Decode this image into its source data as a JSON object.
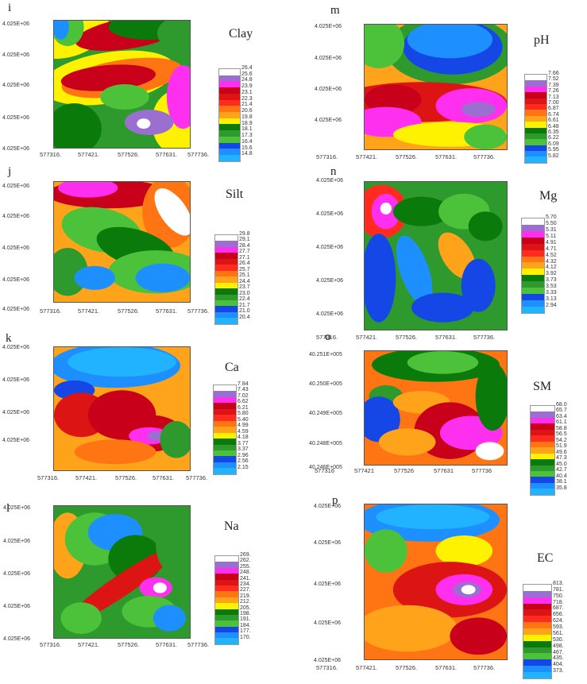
{
  "panels": [
    {
      "letter": "i",
      "title": "Clay",
      "y_ticks": [
        "4.025E+06",
        "4.025E+06",
        "4.025E+06",
        "4.025E+06",
        "4.025E+06"
      ],
      "x_ticks": [
        "577316.",
        "577421.",
        "577526.",
        "577631.",
        "577736."
      ],
      "legend": [
        "26.4",
        "25.6",
        "24.8",
        "23.9",
        "23.1",
        "22.3",
        "21.4",
        "20.6",
        "19.8",
        "18.9",
        "18.1",
        "17.3",
        "16.4",
        "15.6",
        "14.8"
      ]
    },
    {
      "letter": "m",
      "title": "pH",
      "y_ticks": [
        "4.025E+06",
        "4.025E+06",
        "4.025E+06",
        "4.025E+06"
      ],
      "x_ticks": [
        "577316.",
        "577421.",
        "577526.",
        "577631.",
        "577736."
      ],
      "legend": [
        "7.66",
        "7.52",
        "7.39",
        "7.26",
        "7.13",
        "7.00",
        "6.87",
        "6.74",
        "6.61",
        "6.48",
        "6.35",
        "6.22",
        "6.09",
        "5.95",
        "5.82"
      ]
    },
    {
      "letter": "j",
      "title": "Silt",
      "y_ticks": [
        "4.025E+06",
        "4.025E+06",
        "4.025E+06",
        "4.025E+06",
        "4.025E+06"
      ],
      "x_ticks": [
        "577316.",
        "577421.",
        "577526.",
        "577631.",
        "577736."
      ],
      "legend": [
        "29.8",
        "29.1",
        "28.4",
        "27.7",
        "27.1",
        "26.4",
        "25.7",
        "25.1",
        "24.4",
        "23.7",
        "23.0",
        "22.4",
        "21.7",
        "21.0",
        "20.4"
      ]
    },
    {
      "letter": "n",
      "title": "Mg",
      "y_ticks": [
        "4.025E+06",
        "4.025E+06",
        "4.025E+06",
        "4.025E+06",
        "4.025E+06"
      ],
      "x_ticks": [
        "577316.",
        "577421.",
        "577526.",
        "577631.",
        "577736."
      ],
      "legend": [
        "5.70",
        "5.50",
        "5.31",
        "5.11",
        "4.91",
        "4.71",
        "4.52",
        "4.32",
        "4.12",
        "3.92",
        "3.73",
        "3.53",
        "3.33",
        "3.13",
        "2.94"
      ]
    },
    {
      "letter": "k",
      "title": "Ca",
      "y_ticks": [
        "4.025E+06",
        "4.025E+06",
        "4.025E+06",
        "4.025E+06"
      ],
      "x_ticks": [
        "577316.",
        "577421.",
        "577526.",
        "577631.",
        "577736."
      ],
      "legend": [
        "7.84",
        "7.43",
        "7.02",
        "6.62",
        "6.21",
        "5.80",
        "5.40",
        "4.99",
        "4.59",
        "4.18",
        "3.77",
        "3.37",
        "2.96",
        "2.56",
        "2.15"
      ]
    },
    {
      "letter": "o",
      "title": "SM",
      "y_ticks": [
        "40.251E+005",
        "40.250E+005",
        "40.249E+005",
        "40.248E+005",
        "40.246E+005"
      ],
      "x_ticks": [
        "577316",
        "577421",
        "577526",
        "577631",
        "577736"
      ],
      "legend": [
        "68.0",
        "65.7",
        "63.4",
        "61.1",
        "58.8",
        "56.5",
        "54.2",
        "51.9",
        "49.6",
        "47.3",
        "45.0",
        "42.7",
        "40.4",
        "38.1",
        "35.8"
      ]
    },
    {
      "letter": "l",
      "title": "Na",
      "y_ticks": [
        "4.025E+06",
        "4.025E+06",
        "4.025E+06",
        "4.025E+06",
        "4.025E+06"
      ],
      "x_ticks": [
        "577316.",
        "577421.",
        "577526.",
        "577631.",
        "577736."
      ],
      "legend": [
        "269.",
        "262.",
        "255.",
        "248.",
        "241.",
        "234.",
        "227.",
        "219.",
        "212.",
        "205.",
        "198.",
        "191.",
        "184.",
        "177.",
        "170."
      ]
    },
    {
      "letter": "p",
      "title": "EC",
      "y_ticks": [
        "4.025E+06",
        "4.025E+06",
        "4.025E+06",
        "4.025E+06",
        "4.025E+06"
      ],
      "x_ticks": [
        "577316.",
        "577421.",
        "577526.",
        "577631.",
        "577736."
      ],
      "legend": [
        "813.",
        "781.",
        "750.",
        "718.",
        "687.",
        "656.",
        "624.",
        "593.",
        "561.",
        "530.",
        "498.",
        "467.",
        "435.",
        "404.",
        "373."
      ]
    }
  ],
  "palette": [
    "#ffffff",
    "#9b6fcf",
    "#ff2ff0",
    "#c8001a",
    "#dd1414",
    "#ff2b1f",
    "#ff7514",
    "#ffa31a",
    "#fff200",
    "#0a7a0a",
    "#2e9a2e",
    "#4cc23a",
    "#1447e6",
    "#1e8fff",
    "#21b3ff"
  ],
  "chart_data": [
    {
      "type": "heatmap",
      "title": "Clay",
      "label": "i",
      "xlabels": [
        "577316.",
        "577421.",
        "577526.",
        "577631.",
        "577736."
      ],
      "ylabels": [
        "4.025E+06",
        "4.025E+06",
        "4.025E+06",
        "4.025E+06",
        "4.025E+06"
      ],
      "legend_values": [
        26.4,
        25.6,
        24.8,
        23.9,
        23.1,
        22.3,
        21.4,
        20.6,
        19.8,
        18.9,
        18.1,
        17.3,
        16.4,
        15.6,
        14.8
      ]
    },
    {
      "type": "heatmap",
      "title": "pH",
      "label": "m",
      "xlabels": [
        "577316.",
        "577421.",
        "577526.",
        "577631.",
        "577736."
      ],
      "ylabels": [
        "4.025E+06",
        "4.025E+06",
        "4.025E+06",
        "4.025E+06"
      ],
      "legend_values": [
        7.66,
        7.52,
        7.39,
        7.26,
        7.13,
        7.0,
        6.87,
        6.74,
        6.61,
        6.48,
        6.35,
        6.22,
        6.09,
        5.95,
        5.82
      ]
    },
    {
      "type": "heatmap",
      "title": "Silt",
      "label": "j",
      "xlabels": [
        "577316.",
        "577421.",
        "577526.",
        "577631.",
        "577736."
      ],
      "ylabels": [
        "4.025E+06",
        "4.025E+06",
        "4.025E+06",
        "4.025E+06",
        "4.025E+06"
      ],
      "legend_values": [
        29.8,
        29.1,
        28.4,
        27.7,
        27.1,
        26.4,
        25.7,
        25.1,
        24.4,
        23.7,
        23.0,
        22.4,
        21.7,
        21.0,
        20.4
      ]
    },
    {
      "type": "heatmap",
      "title": "Mg",
      "label": "n",
      "xlabels": [
        "577316.",
        "577421.",
        "577526.",
        "577631.",
        "577736."
      ],
      "ylabels": [
        "4.025E+06",
        "4.025E+06",
        "4.025E+06",
        "4.025E+06",
        "4.025E+06"
      ],
      "legend_values": [
        5.7,
        5.5,
        5.31,
        5.11,
        4.91,
        4.71,
        4.52,
        4.32,
        4.12,
        3.92,
        3.73,
        3.53,
        3.33,
        3.13,
        2.94
      ]
    },
    {
      "type": "heatmap",
      "title": "Ca",
      "label": "k",
      "xlabels": [
        "577316.",
        "577421.",
        "577526.",
        "577631.",
        "577736."
      ],
      "ylabels": [
        "4.025E+06",
        "4.025E+06",
        "4.025E+06",
        "4.025E+06"
      ],
      "legend_values": [
        7.84,
        7.43,
        7.02,
        6.62,
        6.21,
        5.8,
        5.4,
        4.99,
        4.59,
        4.18,
        3.77,
        3.37,
        2.96,
        2.56,
        2.15
      ]
    },
    {
      "type": "heatmap",
      "title": "SM",
      "label": "o",
      "xlabels": [
        "577316",
        "577421",
        "577526",
        "577631",
        "577736"
      ],
      "ylabels": [
        "40.251E+005",
        "40.250E+005",
        "40.249E+005",
        "40.248E+005",
        "40.246E+005"
      ],
      "legend_values": [
        68.0,
        65.7,
        63.4,
        61.1,
        58.8,
        56.5,
        54.2,
        51.9,
        49.6,
        47.3,
        45.0,
        42.7,
        40.4,
        38.1,
        35.8
      ]
    },
    {
      "type": "heatmap",
      "title": "Na",
      "label": "l",
      "xlabels": [
        "577316.",
        "577421.",
        "577526.",
        "577631.",
        "577736."
      ],
      "ylabels": [
        "4.025E+06",
        "4.025E+06",
        "4.025E+06",
        "4.025E+06",
        "4.025E+06"
      ],
      "legend_values": [
        269,
        262,
        255,
        248,
        241,
        234,
        227,
        219,
        212,
        205,
        198,
        191,
        184,
        177,
        170
      ]
    },
    {
      "type": "heatmap",
      "title": "EC",
      "label": "p",
      "xlabels": [
        "577316.",
        "577421.",
        "577526.",
        "577631.",
        "577736."
      ],
      "ylabels": [
        "4.025E+06",
        "4.025E+06",
        "4.025E+06",
        "4.025E+06",
        "4.025E+06"
      ],
      "legend_values": [
        813,
        781,
        750,
        718,
        687,
        656,
        624,
        593,
        561,
        530,
        498,
        467,
        435,
        404,
        373
      ]
    }
  ]
}
